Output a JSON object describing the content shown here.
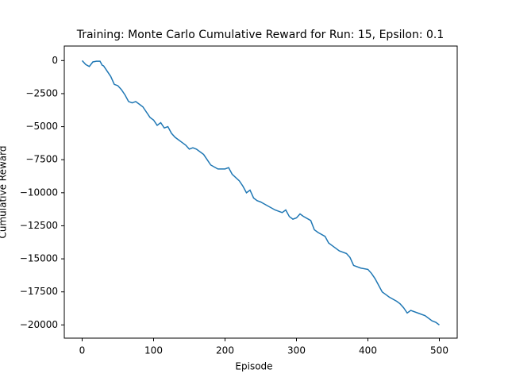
{
  "chart_data": {
    "type": "line",
    "title": "Training: Monte Carlo Cumulative Reward for Run: 15, Epsilon: 0.1",
    "x_label": "Episode",
    "y_label": "Cumulative Reward",
    "xlim": [
      -25,
      525
    ],
    "ylim": [
      -21000,
      1100
    ],
    "xticks": [
      0,
      100,
      200,
      300,
      400,
      500
    ],
    "yticks": [
      {
        "value": -20000,
        "label": "−20000"
      },
      {
        "value": -17500,
        "label": "−17500"
      },
      {
        "value": -15000,
        "label": "−15000"
      },
      {
        "value": -12500,
        "label": "−12500"
      },
      {
        "value": -10000,
        "label": "−10000"
      },
      {
        "value": -7500,
        "label": "−7500"
      },
      {
        "value": -5000,
        "label": "−5000"
      },
      {
        "value": -2500,
        "label": "−2500"
      },
      0
    ],
    "series": [
      {
        "name": "Cumulative Reward",
        "color": "#1f77b4",
        "x": [
          0,
          5,
          10,
          15,
          20,
          25,
          28,
          30,
          40,
          45,
          50,
          55,
          60,
          65,
          70,
          75,
          80,
          85,
          90,
          95,
          100,
          105,
          110,
          115,
          120,
          125,
          130,
          135,
          140,
          145,
          150,
          155,
          160,
          170,
          175,
          180,
          190,
          200,
          205,
          210,
          220,
          225,
          230,
          235,
          240,
          245,
          250,
          260,
          270,
          280,
          285,
          290,
          295,
          300,
          305,
          310,
          320,
          325,
          330,
          340,
          345,
          350,
          360,
          370,
          375,
          380,
          390,
          400,
          405,
          410,
          415,
          420,
          425,
          430,
          440,
          445,
          450,
          455,
          460,
          470,
          480,
          490,
          495,
          500
        ],
        "values": [
          0,
          -300,
          -450,
          -100,
          -50,
          -50,
          -350,
          -400,
          -1200,
          -1800,
          -1900,
          -2200,
          -2600,
          -3100,
          -3200,
          -3100,
          -3300,
          -3500,
          -3900,
          -4300,
          -4500,
          -4900,
          -4700,
          -5100,
          -5000,
          -5500,
          -5800,
          -6000,
          -6200,
          -6400,
          -6700,
          -6600,
          -6700,
          -7100,
          -7500,
          -7900,
          -8200,
          -8200,
          -8100,
          -8600,
          -9100,
          -9500,
          -10000,
          -9800,
          -10400,
          -10600,
          -10700,
          -11000,
          -11300,
          -11500,
          -11300,
          -11800,
          -12000,
          -11900,
          -11600,
          -11800,
          -12100,
          -12800,
          -13000,
          -13300,
          -13800,
          -14000,
          -14400,
          -14600,
          -14900,
          -15500,
          -15700,
          -15800,
          -16100,
          -16500,
          -17000,
          -17500,
          -17700,
          -17900,
          -18200,
          -18400,
          -18700,
          -19100,
          -18900,
          -19100,
          -19300,
          -19700,
          -19800,
          -20000
        ]
      }
    ]
  }
}
